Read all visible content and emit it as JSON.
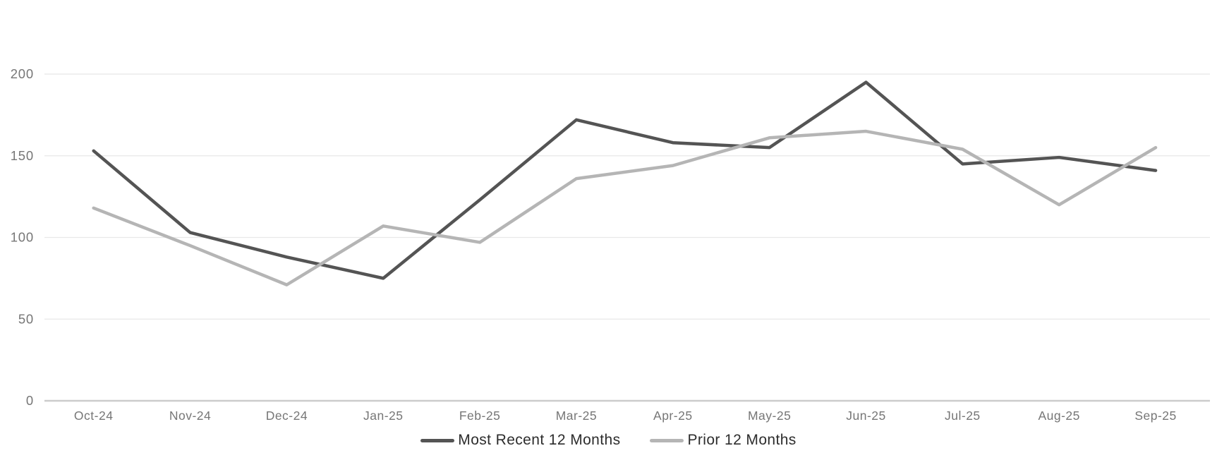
{
  "chart_data": {
    "type": "line",
    "title": "",
    "xlabel": "",
    "ylabel": "",
    "categories": [
      "Oct-24",
      "Nov-24",
      "Dec-24",
      "Jan-25",
      "Feb-25",
      "Mar-25",
      "Apr-25",
      "May-25",
      "Jun-25",
      "Jul-25",
      "Aug-25",
      "Sep-25"
    ],
    "series": [
      {
        "name": "Most Recent 12 Months",
        "color": "#545454",
        "values": [
          153,
          103,
          88,
          75,
          123,
          172,
          158,
          155,
          195,
          145,
          149,
          141
        ]
      },
      {
        "name": "Prior 12 Months",
        "color": "#b5b5b5",
        "values": [
          118,
          95,
          71,
          107,
          97,
          136,
          144,
          161,
          165,
          154,
          120,
          155
        ]
      }
    ],
    "y_axis": {
      "ticks": [
        0,
        50,
        100,
        150,
        200
      ],
      "min": 0,
      "max": 200
    },
    "grid": "horizontal",
    "legend_position": "bottom-center",
    "style": {
      "background": "#ffffff",
      "grid_color": "#e8e8e8",
      "axis_line_color": "#cccccc",
      "tick_label_color": "#767676",
      "legend_text_color": "#2d2d2d"
    }
  }
}
